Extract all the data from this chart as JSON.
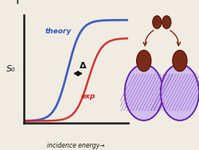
{
  "bg_color": "#f0ece2",
  "axis_color": "#1a1a1a",
  "theory_color": "#3355bb",
  "exp_color": "#cc2222",
  "arrow_color": "#111111",
  "delta_color": "#111111",
  "theory_label": "theory",
  "exp_label": "exp",
  "xlabel": "incidence energy→",
  "ylabel": "S₀",
  "theory_shift": 4.2,
  "exp_shift": 6.2,
  "mol_color": "#7a2a18",
  "mol_edge": "#5a1a08",
  "surf_fill": "#d0c0ee",
  "surf_edge": "#6622aa",
  "surf_hatch_color": "#8844cc"
}
